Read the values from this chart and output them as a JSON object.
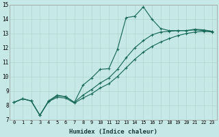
{
  "xlabel": "Humidex (Indice chaleur)",
  "ylabel": "",
  "xlim": [
    -0.5,
    23.5
  ],
  "ylim": [
    7,
    15
  ],
  "xticks": [
    0,
    1,
    2,
    3,
    4,
    5,
    6,
    7,
    8,
    9,
    10,
    11,
    12,
    13,
    14,
    15,
    16,
    17,
    18,
    19,
    20,
    21,
    22,
    23
  ],
  "yticks": [
    7,
    8,
    9,
    10,
    11,
    12,
    13,
    14,
    15
  ],
  "bg_color": "#c6e8e6",
  "grid_color": "#b0d4d0",
  "line_color": "#1a6a5a",
  "hours": [
    0,
    1,
    2,
    3,
    4,
    5,
    6,
    7,
    8,
    9,
    10,
    11,
    12,
    13,
    14,
    15,
    16,
    17,
    18,
    19,
    20,
    21,
    22,
    23
  ],
  "curve_jagged": [
    8.2,
    8.45,
    8.3,
    7.3,
    8.3,
    8.7,
    8.6,
    8.2,
    9.4,
    9.9,
    10.5,
    10.55,
    11.9,
    14.1,
    14.2,
    14.85,
    14.0,
    13.35,
    13.2,
    13.2,
    13.2,
    13.3,
    13.25,
    13.15
  ],
  "curve_mid": [
    8.2,
    8.45,
    8.3,
    7.3,
    8.25,
    8.65,
    8.6,
    8.2,
    8.7,
    9.1,
    9.55,
    9.9,
    10.5,
    11.3,
    12.0,
    12.5,
    12.9,
    13.1,
    13.15,
    13.2,
    13.2,
    13.25,
    13.2,
    13.15
  ],
  "curve_low": [
    8.2,
    8.45,
    8.3,
    7.3,
    8.25,
    8.55,
    8.5,
    8.15,
    8.5,
    8.8,
    9.2,
    9.5,
    10.0,
    10.6,
    11.2,
    11.7,
    12.1,
    12.4,
    12.65,
    12.85,
    13.0,
    13.1,
    13.15,
    13.1
  ]
}
